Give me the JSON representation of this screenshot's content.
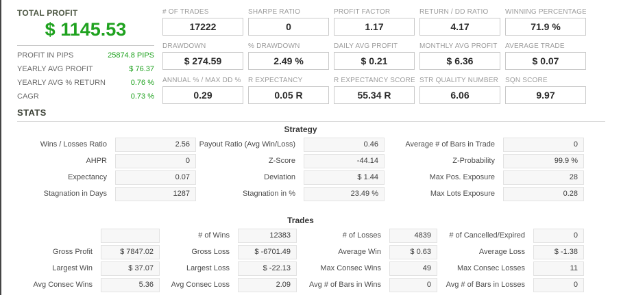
{
  "summary": {
    "title": "TOTAL PROFIT",
    "total_profit": "$ 1145.53",
    "rows": [
      {
        "label": "PROFIT IN PIPS",
        "value": "25874.8 PIPS"
      },
      {
        "label": "YEARLY AVG PROFIT",
        "value": "$ 76.37"
      },
      {
        "label": "YEARLY AVG % RETURN",
        "value": "0.76 %"
      },
      {
        "label": "CAGR",
        "value": "0.73 %"
      }
    ]
  },
  "stats_heading": "STATS",
  "colors": {
    "profit_green": "#1fa21f",
    "label_gray": "#9b9b9b"
  },
  "metrics": {
    "rows": [
      [
        {
          "label": "# OF TRADES",
          "value": "17222"
        },
        {
          "label": "SHARPE RATIO",
          "value": "0"
        },
        {
          "label": "PROFIT FACTOR",
          "value": "1.17"
        },
        {
          "label": "RETURN / DD RATIO",
          "value": "4.17"
        },
        {
          "label": "WINNING PERCENTAGE",
          "value": "71.9 %"
        }
      ],
      [
        {
          "label": "DRAWDOWN",
          "value": "$ 274.59"
        },
        {
          "label": "% DRAWDOWN",
          "value": "2.49 %"
        },
        {
          "label": "DAILY AVG PROFIT",
          "value": "$ 0.21"
        },
        {
          "label": "MONTHLY AVG PROFIT",
          "value": "$ 6.36"
        },
        {
          "label": "AVERAGE TRADE",
          "value": "$ 0.07"
        }
      ],
      [
        {
          "label": "ANNUAL % / MAX DD %",
          "value": "0.29"
        },
        {
          "label": "R EXPECTANCY",
          "value": "0.05 R"
        },
        {
          "label": "R EXPECTANCY SCORE",
          "value": "55.34 R"
        },
        {
          "label": "STR QUALITY NUMBER",
          "value": "6.06"
        },
        {
          "label": "SQN SCORE",
          "value": "9.97"
        }
      ]
    ]
  },
  "strategy": {
    "title": "Strategy",
    "rows": [
      [
        {
          "label": "Wins / Losses Ratio",
          "value": "2.56"
        },
        {
          "label": "Payout Ratio (Avg Win/Loss)",
          "value": "0.46"
        },
        {
          "label": "Average # of Bars in Trade",
          "value": "0"
        }
      ],
      [
        {
          "label": "AHPR",
          "value": "0"
        },
        {
          "label": "Z-Score",
          "value": "-44.14"
        },
        {
          "label": "Z-Probability",
          "value": "99.9 %"
        }
      ],
      [
        {
          "label": "Expectancy",
          "value": "0.07"
        },
        {
          "label": "Deviation",
          "value": "$ 1.44"
        },
        {
          "label": "Max Pos. Exposure",
          "value": "28"
        }
      ],
      [
        {
          "label": "Stagnation in Days",
          "value": "1287"
        },
        {
          "label": "Stagnation in %",
          "value": "23.49 %"
        },
        {
          "label": "Max Lots Exposure",
          "value": "0.28"
        }
      ]
    ]
  },
  "trades": {
    "title": "Trades",
    "rows": [
      [
        {
          "label": "",
          "value": ""
        },
        {
          "label": "# of Wins",
          "value": "12383"
        },
        {
          "label": "# of Losses",
          "value": "4839"
        },
        {
          "label": "# of Cancelled/Expired",
          "value": "0"
        }
      ],
      [
        {
          "label": "Gross Profit",
          "value": "$ 7847.02"
        },
        {
          "label": "Gross Loss",
          "value": "$ -6701.49"
        },
        {
          "label": "Average Win",
          "value": "$ 0.63"
        },
        {
          "label": "Average Loss",
          "value": "$ -1.38"
        }
      ],
      [
        {
          "label": "Largest Win",
          "value": "$ 37.07"
        },
        {
          "label": "Largest Loss",
          "value": "$ -22.13"
        },
        {
          "label": "Max Consec Wins",
          "value": "49"
        },
        {
          "label": "Max Consec Losses",
          "value": "11"
        }
      ],
      [
        {
          "label": "Avg Consec Wins",
          "value": "5.36"
        },
        {
          "label": "Avg Consec Loss",
          "value": "2.09"
        },
        {
          "label": "Avg # of Bars in Wins",
          "value": "0"
        },
        {
          "label": "Avg # of Bars in Losses",
          "value": "0"
        }
      ]
    ]
  }
}
